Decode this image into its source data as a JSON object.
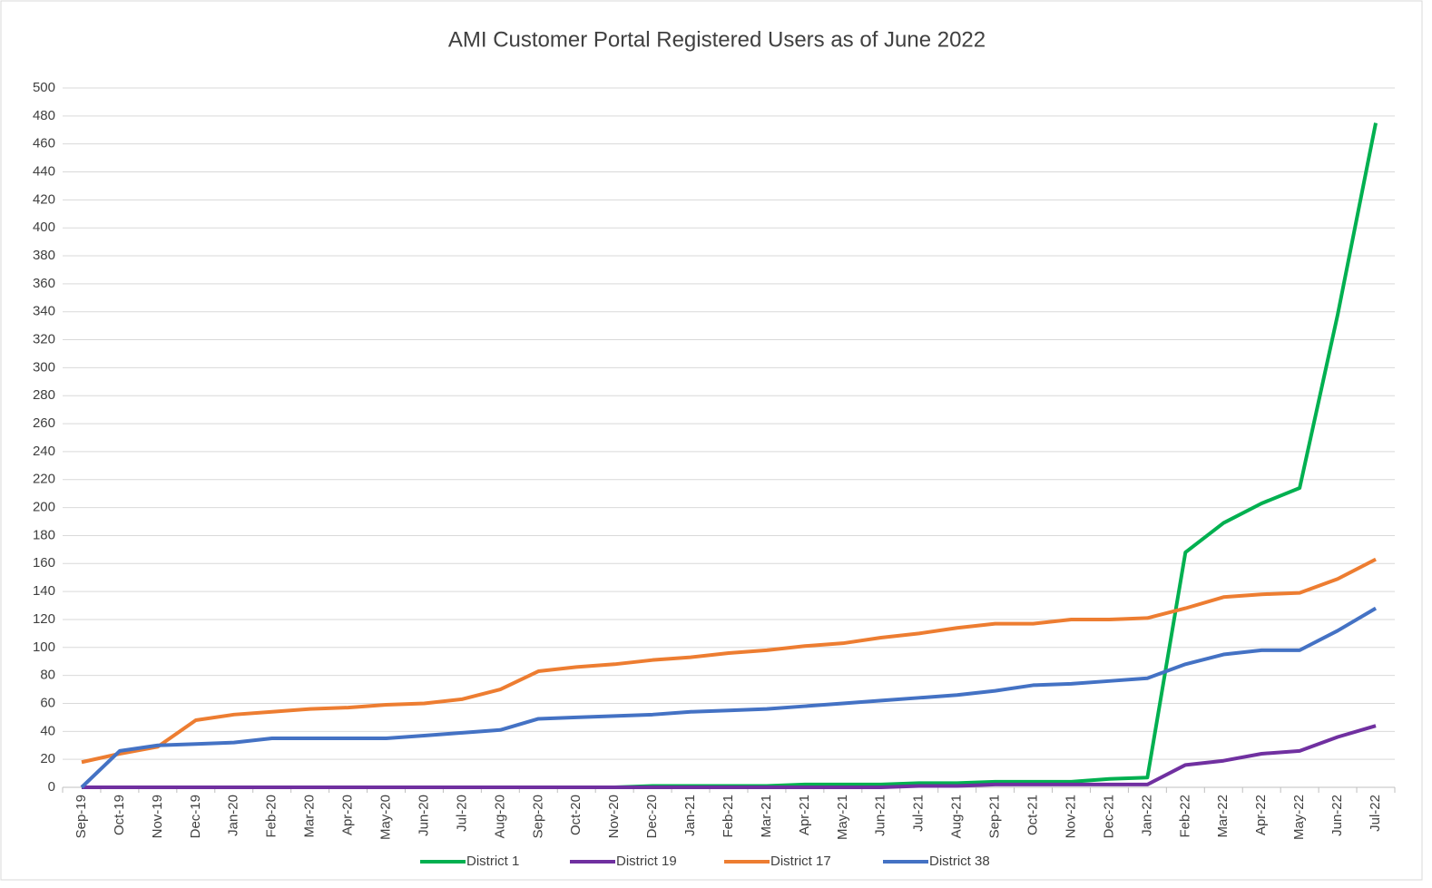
{
  "chart_data": {
    "type": "line",
    "title": "AMI Customer Portal Registered Users as of June 2022",
    "categories": [
      "Sep-19",
      "Oct-19",
      "Nov-19",
      "Dec-19",
      "Jan-20",
      "Feb-20",
      "Mar-20",
      "Apr-20",
      "May-20",
      "Jun-20",
      "Jul-20",
      "Aug-20",
      "Sep-20",
      "Oct-20",
      "Nov-20",
      "Dec-20",
      "Jan-21",
      "Feb-21",
      "Mar-21",
      "Apr-21",
      "May-21",
      "Jun-21",
      "Jul-21",
      "Aug-21",
      "Sep-21",
      "Oct-21",
      "Nov-21",
      "Dec-21",
      "Jan-22",
      "Feb-22",
      "Mar-22",
      "Apr-22",
      "May-22",
      "Jun-22",
      "Jul-22"
    ],
    "series": [
      {
        "name": "District 1",
        "color": "#00b050",
        "values": [
          0,
          0,
          0,
          0,
          0,
          0,
          0,
          0,
          0,
          0,
          0,
          0,
          0,
          0,
          0,
          1,
          1,
          1,
          1,
          2,
          2,
          2,
          3,
          3,
          4,
          4,
          4,
          6,
          7,
          168,
          189,
          203,
          214,
          338,
          475
        ]
      },
      {
        "name": "District 19",
        "color": "#7030a0",
        "values": [
          0,
          0,
          0,
          0,
          0,
          0,
          0,
          0,
          0,
          0,
          0,
          0,
          0,
          0,
          0,
          0,
          0,
          0,
          0,
          0,
          0,
          0,
          1,
          1,
          2,
          2,
          2,
          2,
          2,
          16,
          19,
          24,
          26,
          36,
          44
        ]
      },
      {
        "name": "District 17",
        "color": "#ed7d31",
        "values": [
          18,
          24,
          29,
          48,
          52,
          54,
          56,
          57,
          59,
          60,
          63,
          70,
          83,
          86,
          88,
          91,
          93,
          96,
          98,
          101,
          103,
          107,
          110,
          114,
          117,
          117,
          120,
          120,
          121,
          128,
          136,
          138,
          139,
          149,
          163
        ]
      },
      {
        "name": "District 38",
        "color": "#4472c4",
        "values": [
          0,
          26,
          30,
          31,
          32,
          35,
          35,
          35,
          35,
          37,
          39,
          41,
          49,
          50,
          51,
          52,
          54,
          55,
          56,
          58,
          60,
          62,
          64,
          66,
          69,
          73,
          74,
          76,
          78,
          88,
          95,
          98,
          98,
          112,
          128
        ]
      }
    ],
    "ylim": [
      0,
      500
    ],
    "yticks": [
      0,
      20,
      40,
      60,
      80,
      100,
      120,
      140,
      160,
      180,
      200,
      220,
      240,
      260,
      280,
      300,
      320,
      340,
      360,
      380,
      400,
      420,
      440,
      460,
      480,
      500
    ],
    "grid": true,
    "legend": "bottom"
  }
}
